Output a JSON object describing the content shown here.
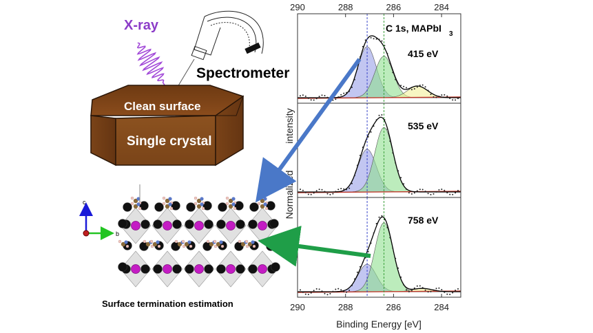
{
  "left": {
    "xray_label": "X-ray",
    "spectrometer_label": "Spectrometer",
    "clean_surface_label": "Clean surface",
    "crystal_label": "Single crystal",
    "axis_c": "c",
    "axis_b": "b",
    "caption": "Surface termination estimation"
  },
  "chart_data": {
    "type": "line",
    "title": "C 1s, MAPbI3",
    "title_main": "C 1s, MAPbI",
    "title_sub": "3",
    "xlabel": "Binding Energy [eV]",
    "ylabel": "Normalized intensity",
    "ylabel_parts": [
      "Normalized",
      "intensity"
    ],
    "x_ticks": [
      290,
      288,
      286,
      284
    ],
    "xlim": [
      290,
      283.2
    ],
    "x_reversed": true,
    "reference_lines": [
      287.1,
      286.4
    ],
    "colors": {
      "peak_1": "#9aa0e8",
      "peak_2": "#8fe08f",
      "peak_3": "#f2f09a",
      "envelope": "#000000",
      "background": "#c0392b",
      "ref_line_1": "#3a46c8",
      "ref_line_2": "#3aa03a"
    },
    "panels": [
      {
        "label": "415 eV",
        "peaks": [
          {
            "center": 287.1,
            "amplitude": 0.7,
            "width": 0.38
          },
          {
            "center": 286.4,
            "amplitude": 0.57,
            "width": 0.38
          },
          {
            "center": 285.0,
            "amplitude": 0.16,
            "width": 0.42
          }
        ]
      },
      {
        "label": "535 eV",
        "peaks": [
          {
            "center": 287.1,
            "amplitude": 0.55,
            "width": 0.38
          },
          {
            "center": 286.4,
            "amplitude": 0.83,
            "width": 0.38
          }
        ]
      },
      {
        "label": "758 eV",
        "peaks": [
          {
            "center": 287.1,
            "amplitude": 0.33,
            "width": 0.38
          },
          {
            "center": 286.4,
            "amplitude": 0.83,
            "width": 0.38
          },
          {
            "center": 284.8,
            "amplitude": 0.04,
            "width": 0.4
          }
        ]
      }
    ]
  },
  "arrows": {
    "blue": "#4a78c8",
    "green": "#1f9e48"
  }
}
